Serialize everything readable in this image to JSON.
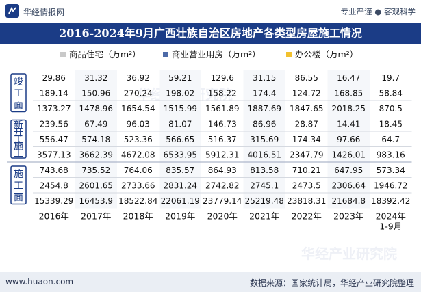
{
  "header": {
    "brand": "华经情报网",
    "slogan": "专业严谨 ● 客观科学"
  },
  "footer": {
    "url": "www.huaon.com",
    "source": "数据来源：国家统计局，华经产业研究院整理"
  },
  "watermark": "华经产业研究院",
  "colors": {
    "title_bg": "#1b3c86",
    "residential": "#c9c9c9",
    "commercial": "#4d6aa8",
    "office": "#f2c12e",
    "group_label_border": "#1b3c86"
  },
  "chart_data": {
    "type": "table",
    "title": "2016-2024年9月广西壮族自治区房地产各类型房屋施工情况",
    "series_names": [
      "商品住宅（万m²）",
      "商业营业用房（万m²）",
      "办公楼（万m²）"
    ],
    "categories": [
      "2016年",
      "2017年",
      "2018年",
      "2019年",
      "2020年",
      "2021年",
      "2022年",
      "2023年",
      "2024年\n1-9月"
    ],
    "groups": [
      {
        "label": "竣工面",
        "rows": [
          {
            "series": "办公楼（万m²）",
            "values": [
              29.86,
              31.32,
              36.92,
              59.21,
              129.6,
              31.15,
              86.55,
              16.47,
              19.7
            ]
          },
          {
            "series": "商业营业用房（万m²）",
            "values": [
              189.14,
              150.96,
              270.24,
              198.02,
              158.22,
              174.4,
              124.72,
              168.85,
              58.84
            ]
          },
          {
            "series": "商品住宅（万m²）",
            "values": [
              1373.27,
              1478.96,
              1654.54,
              1515.99,
              1561.89,
              1887.69,
              1847.65,
              2018.25,
              870.5
            ]
          }
        ]
      },
      {
        "label": "新开工施工",
        "rows": [
          {
            "series": "办公楼（万m²）",
            "values": [
              239.56,
              67.49,
              96.03,
              81.07,
              146.73,
              86.96,
              28.87,
              14.41,
              18.45
            ]
          },
          {
            "series": "商业营业用房（万m²）",
            "values": [
              556.47,
              574.18,
              523.36,
              566.65,
              516.37,
              315.69,
              174.34,
              97.66,
              64.7
            ]
          },
          {
            "series": "商品住宅（万m²）",
            "values": [
              3577.13,
              3662.39,
              4672.08,
              6533.95,
              5912.31,
              4016.51,
              2347.79,
              1426.01,
              983.16
            ]
          }
        ]
      },
      {
        "label": "施工面",
        "rows": [
          {
            "series": "办公楼（万m²）",
            "values": [
              743.68,
              735.52,
              764.06,
              835.57,
              864.93,
              813.58,
              710.21,
              647.95,
              573.34
            ]
          },
          {
            "series": "商业营业用房（万m²）",
            "values": [
              2454.8,
              2601.65,
              2733.66,
              2831.24,
              2742.82,
              2745.1,
              2473.5,
              2306.64,
              1946.72
            ]
          },
          {
            "series": "商品住宅（万m²）",
            "values": [
              15339.29,
              16453.9,
              18522.84,
              22061.19,
              23779.14,
              25219.48,
              23818.31,
              21684.8,
              18392.42
            ]
          }
        ]
      }
    ]
  }
}
